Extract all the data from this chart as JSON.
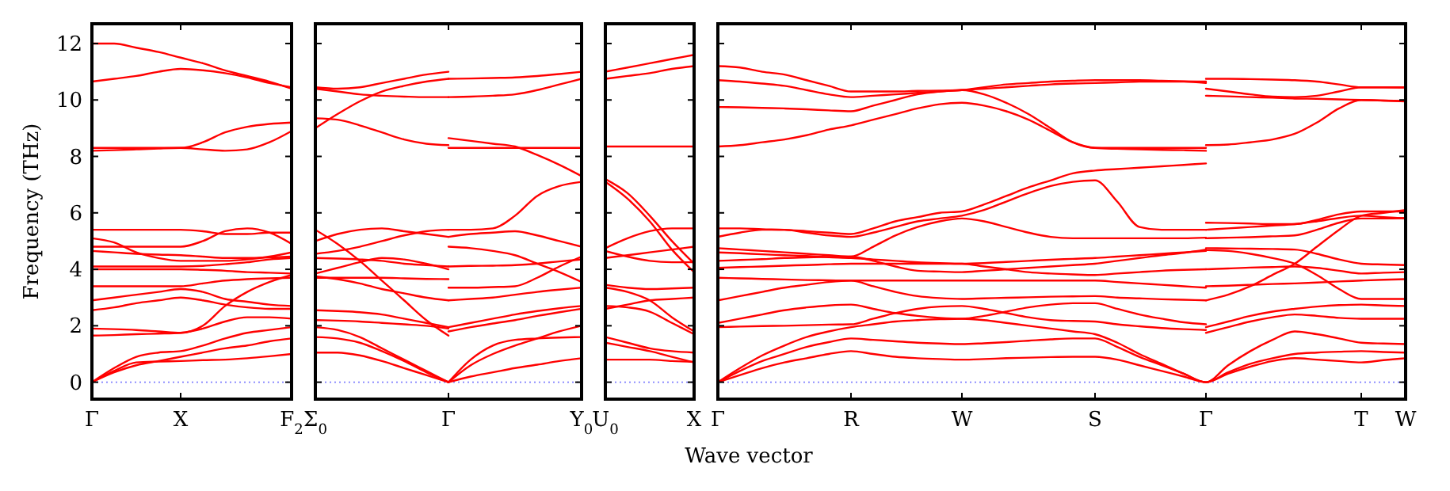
{
  "chart_data": [
    {
      "type": "line",
      "ylabel": "Frequency (THz)",
      "categories": [
        "Γ",
        null,
        null,
        null,
        "X",
        null,
        null,
        null,
        null,
        "F$_{2}$"
      ],
      "ylim": [
        -0.6,
        12.7
      ],
      "yticks": [
        0,
        2,
        4,
        6,
        8,
        10,
        12
      ],
      "ref_lines": [
        {
          "axis": "y",
          "value": 0,
          "color": "#8080ff",
          "line_style": "dotted"
        }
      ],
      "series": [
        {
          "color": "#ff0000",
          "values": [
            12.0,
            12.0,
            11.85,
            11.7,
            11.5,
            11.3,
            11.05,
            10.85,
            10.65,
            10.4
          ]
        },
        {
          "color": "#ff0000",
          "values": [
            10.65,
            10.75,
            10.85,
            11.0,
            11.1,
            11.05,
            10.95,
            10.8,
            10.6,
            10.45
          ]
        },
        {
          "color": "#ff0000",
          "values": [
            8.3,
            8.3,
            8.3,
            8.3,
            8.3,
            8.5,
            8.85,
            9.05,
            9.15,
            9.2
          ]
        },
        {
          "color": "#ff0000",
          "values": [
            8.2,
            8.22,
            8.25,
            8.28,
            8.3,
            8.25,
            8.2,
            8.25,
            8.5,
            8.9
          ]
        },
        {
          "color": "#ff0000",
          "values": [
            5.4,
            5.4,
            5.4,
            5.4,
            5.4,
            5.35,
            5.25,
            5.25,
            5.3,
            5.3
          ]
        },
        {
          "color": "#ff0000",
          "values": [
            4.8,
            4.8,
            4.8,
            4.8,
            4.8,
            5.0,
            5.35,
            5.45,
            5.3,
            4.9
          ]
        },
        {
          "color": "#ff0000",
          "values": [
            5.1,
            4.95,
            4.6,
            4.4,
            4.3,
            4.3,
            4.3,
            4.35,
            4.45,
            4.6
          ]
        },
        {
          "color": "#ff0000",
          "values": [
            4.65,
            4.6,
            4.55,
            4.52,
            4.5,
            4.45,
            4.4,
            4.4,
            4.42,
            4.45
          ]
        },
        {
          "color": "#ff0000",
          "values": [
            4.1,
            4.1,
            4.1,
            4.1,
            4.1,
            4.12,
            4.18,
            4.25,
            4.35,
            4.4
          ]
        },
        {
          "color": "#ff0000",
          "values": [
            4.0,
            4.0,
            4.0,
            4.0,
            4.0,
            3.98,
            3.95,
            3.9,
            3.88,
            3.85
          ]
        },
        {
          "color": "#ff0000",
          "values": [
            3.4,
            3.4,
            3.4,
            3.4,
            3.4,
            3.5,
            3.6,
            3.65,
            3.68,
            3.7
          ]
        },
        {
          "color": "#ff0000",
          "values": [
            2.9,
            3.0,
            3.1,
            3.2,
            3.3,
            3.2,
            2.95,
            2.85,
            2.75,
            2.7
          ]
        },
        {
          "color": "#ff0000",
          "values": [
            2.55,
            2.65,
            2.8,
            2.9,
            3.0,
            2.9,
            2.75,
            2.65,
            2.6,
            2.6
          ]
        },
        {
          "color": "#ff0000",
          "values": [
            1.9,
            1.88,
            1.85,
            1.8,
            1.75,
            2.0,
            2.7,
            3.2,
            3.55,
            3.8
          ]
        },
        {
          "color": "#ff0000",
          "values": [
            1.65,
            1.67,
            1.7,
            1.72,
            1.75,
            1.9,
            2.15,
            2.3,
            2.3,
            2.25
          ]
        },
        {
          "color": "#ff0000",
          "values": [
            0,
            0.5,
            0.9,
            1.05,
            1.1,
            1.3,
            1.55,
            1.75,
            1.85,
            1.95
          ]
        },
        {
          "color": "#ff0000",
          "values": [
            0,
            0.35,
            0.6,
            0.75,
            0.9,
            1.05,
            1.2,
            1.3,
            1.45,
            1.55
          ]
        },
        {
          "color": "#ff0000",
          "values": [
            0,
            0.4,
            0.7,
            0.73,
            0.75,
            0.78,
            0.8,
            0.85,
            0.92,
            1.0
          ]
        }
      ]
    },
    {
      "type": "line",
      "tick_labels": "x",
      "categories": [
        "Σ$_{0}$",
        null,
        null,
        null,
        null,
        null,
        "Γ",
        null,
        null,
        null,
        null,
        null,
        "Y$_{0}$"
      ],
      "ylim": [
        -0.6,
        12.7
      ],
      "yticks": [
        0,
        2,
        4,
        6,
        8,
        10,
        12
      ],
      "ref_lines": [
        {
          "axis": "y",
          "value": 0,
          "color": "#8080ff",
          "line_style": "dotted"
        }
      ],
      "series": [
        {
          "color": "#ff0000",
          "values": [
            10.45,
            10.4,
            10.45,
            10.6,
            10.75,
            10.9,
            11.0,
            null,
            null,
            null,
            null,
            null,
            null
          ]
        },
        {
          "color": "#ff0000",
          "values": [
            10.4,
            10.3,
            10.2,
            10.15,
            10.12,
            10.1,
            10.1,
            null,
            null,
            null,
            null,
            null,
            null
          ]
        },
        {
          "color": "#ff0000",
          "values": [
            9.0,
            9.5,
            9.95,
            10.3,
            10.5,
            10.65,
            10.75,
            null,
            null,
            null,
            null,
            null,
            null
          ]
        },
        {
          "color": "#ff0000",
          "values": [
            9.35,
            9.3,
            9.1,
            8.85,
            8.6,
            8.45,
            8.4,
            null,
            null,
            null,
            null,
            null,
            null
          ]
        },
        {
          "color": "#ff0000",
          "values": [
            5.0,
            5.25,
            5.4,
            5.45,
            5.35,
            5.25,
            5.15,
            null,
            null,
            null,
            null,
            null,
            null
          ]
        },
        {
          "color": "#ff0000",
          "values": [
            5.4,
            4.9,
            4.3,
            3.6,
            2.9,
            2.2,
            1.65,
            null,
            null,
            null,
            null,
            null,
            null
          ]
        },
        {
          "color": "#ff0000",
          "values": [
            4.55,
            4.65,
            4.8,
            5.0,
            5.2,
            5.35,
            5.4,
            null,
            null,
            null,
            null,
            null,
            null
          ]
        },
        {
          "color": "#ff0000",
          "values": [
            4.4,
            4.38,
            4.35,
            4.3,
            4.2,
            4.15,
            4.1,
            null,
            null,
            null,
            null,
            null,
            null
          ]
        },
        {
          "color": "#ff0000",
          "values": [
            3.85,
            4.05,
            4.25,
            4.4,
            4.35,
            4.2,
            4.0,
            null,
            null,
            null,
            null,
            null,
            null
          ]
        },
        {
          "color": "#ff0000",
          "values": [
            3.75,
            3.65,
            3.5,
            3.3,
            3.15,
            3.0,
            2.9,
            null,
            null,
            null,
            null,
            null,
            null
          ]
        },
        {
          "color": "#ff0000",
          "values": [
            3.7,
            3.7,
            3.7,
            3.7,
            3.68,
            3.66,
            3.65,
            null,
            null,
            null,
            null,
            null,
            null
          ]
        },
        {
          "color": "#ff0000",
          "values": [
            2.55,
            2.52,
            2.48,
            2.4,
            2.25,
            2.1,
            1.95,
            null,
            null,
            null,
            null,
            null,
            null
          ]
        },
        {
          "color": "#ff0000",
          "values": [
            2.2,
            2.18,
            2.15,
            2.1,
            2.05,
            2.0,
            1.9,
            null,
            null,
            null,
            null,
            null,
            null
          ]
        },
        {
          "color": "#ff0000",
          "values": [
            1.95,
            1.85,
            1.6,
            1.2,
            0.8,
            0.4,
            0,
            null,
            null,
            null,
            null,
            null,
            null
          ]
        },
        {
          "color": "#ff0000",
          "values": [
            1.6,
            1.55,
            1.4,
            1.1,
            0.75,
            0.35,
            0,
            null,
            null,
            null,
            null,
            null,
            null
          ]
        },
        {
          "color": "#ff0000",
          "values": [
            1.05,
            1.05,
            0.95,
            0.75,
            0.5,
            0.25,
            0,
            null,
            null,
            null,
            null,
            null,
            null
          ]
        },
        {
          "color": "#ff0000",
          "values": [
            null,
            null,
            null,
            null,
            null,
            null,
            10.75,
            10.76,
            10.78,
            10.8,
            10.85,
            10.92,
            11.0
          ]
        },
        {
          "color": "#ff0000",
          "values": [
            null,
            null,
            null,
            null,
            null,
            null,
            10.1,
            10.12,
            10.15,
            10.2,
            10.35,
            10.55,
            10.75
          ]
        },
        {
          "color": "#ff0000",
          "values": [
            null,
            null,
            null,
            null,
            null,
            null,
            8.65,
            8.55,
            8.45,
            8.35,
            8.05,
            7.7,
            7.3
          ]
        },
        {
          "color": "#ff0000",
          "values": [
            null,
            null,
            null,
            null,
            null,
            null,
            8.3,
            8.3,
            8.3,
            8.3,
            8.3,
            8.3,
            8.3
          ]
        },
        {
          "color": "#ff0000",
          "values": [
            null,
            null,
            null,
            null,
            null,
            null,
            5.4,
            5.4,
            5.45,
            5.9,
            6.6,
            6.95,
            7.1
          ]
        },
        {
          "color": "#ff0000",
          "values": [
            null,
            null,
            null,
            null,
            null,
            null,
            5.15,
            5.25,
            5.3,
            5.35,
            5.2,
            5.0,
            4.8
          ]
        },
        {
          "color": "#ff0000",
          "values": [
            null,
            null,
            null,
            null,
            null,
            null,
            4.8,
            4.75,
            4.65,
            4.5,
            4.2,
            3.9,
            3.55
          ]
        },
        {
          "color": "#ff0000",
          "values": [
            null,
            null,
            null,
            null,
            null,
            null,
            4.1,
            4.12,
            4.13,
            4.15,
            4.2,
            4.28,
            4.35
          ]
        },
        {
          "color": "#ff0000",
          "values": [
            null,
            null,
            null,
            null,
            null,
            null,
            3.35,
            3.35,
            3.37,
            3.4,
            3.7,
            4.1,
            4.45
          ]
        },
        {
          "color": "#ff0000",
          "values": [
            null,
            null,
            null,
            null,
            null,
            null,
            2.9,
            2.95,
            3.0,
            3.1,
            3.2,
            3.28,
            3.35
          ]
        },
        {
          "color": "#ff0000",
          "values": [
            null,
            null,
            null,
            null,
            null,
            null,
            1.95,
            2.1,
            2.25,
            2.4,
            2.52,
            2.62,
            2.7
          ]
        },
        {
          "color": "#ff0000",
          "values": [
            null,
            null,
            null,
            null,
            null,
            null,
            1.8,
            1.95,
            2.08,
            2.2,
            2.35,
            2.48,
            2.6
          ]
        },
        {
          "color": "#ff0000",
          "values": [
            null,
            null,
            null,
            null,
            null,
            null,
            0,
            0.8,
            1.3,
            1.5,
            1.55,
            1.58,
            1.6
          ]
        },
        {
          "color": "#ff0000",
          "values": [
            null,
            null,
            null,
            null,
            null,
            null,
            0,
            0.6,
            1.0,
            1.3,
            1.55,
            1.8,
            2.0
          ]
        },
        {
          "color": "#ff0000",
          "values": [
            null,
            null,
            null,
            null,
            null,
            null,
            0,
            0.2,
            0.35,
            0.5,
            0.62,
            0.75,
            0.85
          ]
        }
      ]
    },
    {
      "type": "line",
      "tick_labels": "x",
      "categories": [
        "U$_{0}$",
        null,
        null,
        null,
        "X"
      ],
      "ylim": [
        -0.6,
        12.7
      ],
      "yticks": [
        0,
        2,
        4,
        6,
        8,
        10,
        12
      ],
      "ref_lines": [
        {
          "axis": "y",
          "value": 0,
          "color": "#8080ff",
          "line_style": "dotted"
        }
      ],
      "series": [
        {
          "color": "#ff0000",
          "values": [
            11.0,
            11.15,
            11.3,
            11.45,
            11.6
          ]
        },
        {
          "color": "#ff0000",
          "values": [
            10.75,
            10.85,
            10.95,
            11.1,
            11.2
          ]
        },
        {
          "color": "#ff0000",
          "values": [
            8.35,
            8.35,
            8.35,
            8.35,
            8.35
          ]
        },
        {
          "color": "#ff0000",
          "values": [
            7.2,
            6.7,
            5.9,
            5.0,
            4.2
          ]
        },
        {
          "color": "#ff0000",
          "values": [
            7.1,
            6.5,
            5.7,
            4.7,
            3.9
          ]
        },
        {
          "color": "#ff0000",
          "values": [
            4.75,
            5.1,
            5.35,
            5.45,
            5.45
          ]
        },
        {
          "color": "#ff0000",
          "values": [
            4.4,
            4.5,
            4.6,
            4.7,
            4.8
          ]
        },
        {
          "color": "#ff0000",
          "values": [
            4.65,
            4.45,
            4.3,
            4.25,
            4.25
          ]
        },
        {
          "color": "#ff0000",
          "values": [
            3.45,
            3.35,
            3.3,
            3.32,
            3.35
          ]
        },
        {
          "color": "#ff0000",
          "values": [
            3.35,
            3.2,
            2.9,
            2.3,
            1.8
          ]
        },
        {
          "color": "#ff0000",
          "values": [
            2.7,
            2.65,
            2.5,
            2.1,
            1.7
          ]
        },
        {
          "color": "#ff0000",
          "values": [
            2.6,
            2.75,
            2.9,
            2.95,
            3.0
          ]
        },
        {
          "color": "#ff0000",
          "values": [
            1.6,
            1.4,
            1.2,
            1.1,
            1.05
          ]
        },
        {
          "color": "#ff0000",
          "values": [
            1.4,
            1.25,
            1.1,
            0.9,
            0.7
          ]
        },
        {
          "color": "#ff0000",
          "values": [
            0.8,
            0.8,
            0.8,
            0.75,
            0.72
          ]
        }
      ]
    },
    {
      "type": "line",
      "tick_labels": "x",
      "xlabel": "Wave vector",
      "categories": [
        "Γ",
        null,
        null,
        null,
        null,
        null,
        "R",
        null,
        null,
        null,
        null,
        "W",
        null,
        null,
        null,
        null,
        null,
        "S",
        null,
        null,
        null,
        null,
        "Γ",
        null,
        null,
        null,
        null,
        null,
        null,
        "T",
        null,
        "W"
      ],
      "ylim": [
        -0.6,
        12.7
      ],
      "yticks": [
        0,
        2,
        4,
        6,
        8,
        10,
        12
      ],
      "ref_lines": [
        {
          "axis": "y",
          "value": 0,
          "color": "#8080ff",
          "line_style": "dotted"
        }
      ],
      "series": [
        {
          "color": "#ff0000",
          "values": [
            11.2,
            11.15,
            11.0,
            10.9,
            10.7,
            10.5,
            10.3,
            10.3,
            10.3,
            10.32,
            10.33,
            10.35,
            10.45,
            10.55,
            10.6,
            10.65,
            10.68,
            10.7,
            10.7,
            10.7,
            10.68,
            10.66,
            10.65,
            null,
            null,
            null,
            null,
            null,
            null,
            null,
            null,
            null
          ]
        },
        {
          "color": "#ff0000",
          "values": [
            10.7,
            10.65,
            10.58,
            10.5,
            10.35,
            10.2,
            10.1,
            10.15,
            10.2,
            10.25,
            10.3,
            10.35,
            10.4,
            10.45,
            10.5,
            10.55,
            10.58,
            10.6,
            10.62,
            10.65,
            10.65,
            10.65,
            10.6,
            null,
            null,
            null,
            null,
            null,
            null,
            null,
            null,
            null
          ]
        },
        {
          "color": "#ff0000",
          "values": [
            9.75,
            9.74,
            9.72,
            9.7,
            9.67,
            9.63,
            9.6,
            9.8,
            10.0,
            10.2,
            10.3,
            10.35,
            10.2,
            9.9,
            9.5,
            9.0,
            8.5,
            8.3,
            8.3,
            8.3,
            8.3,
            8.3,
            8.3,
            null,
            null,
            null,
            null,
            null,
            null,
            null,
            null,
            null
          ]
        },
        {
          "color": "#ff0000",
          "values": [
            8.35,
            8.4,
            8.5,
            8.6,
            8.75,
            8.95,
            9.1,
            9.3,
            9.5,
            9.7,
            9.85,
            9.9,
            9.8,
            9.6,
            9.3,
            8.9,
            8.5,
            8.3,
            8.27,
            8.25,
            8.23,
            8.22,
            8.2,
            null,
            null,
            null,
            null,
            null,
            null,
            null,
            null,
            null
          ]
        },
        {
          "color": "#ff0000",
          "values": [
            5.45,
            5.45,
            5.42,
            5.4,
            5.35,
            5.3,
            5.25,
            5.45,
            5.7,
            5.85,
            6.0,
            6.05,
            6.3,
            6.6,
            6.9,
            7.15,
            7.4,
            7.5,
            7.55,
            7.6,
            7.65,
            7.7,
            7.75,
            null,
            null,
            null,
            null,
            null,
            null,
            null,
            null,
            null
          ]
        },
        {
          "color": "#ff0000",
          "values": [
            5.15,
            5.3,
            5.4,
            5.4,
            5.3,
            5.2,
            5.15,
            5.3,
            5.5,
            5.7,
            5.8,
            5.9,
            6.1,
            6.4,
            6.7,
            6.95,
            7.1,
            7.15,
            6.4,
            5.5,
            5.4,
            5.4,
            5.4,
            null,
            null,
            null,
            null,
            null,
            null,
            null,
            null,
            null
          ]
        },
        {
          "color": "#ff0000",
          "values": [
            4.75,
            4.7,
            4.65,
            4.6,
            4.55,
            4.5,
            4.45,
            4.8,
            5.2,
            5.5,
            5.7,
            5.8,
            5.7,
            5.5,
            5.3,
            5.15,
            5.1,
            5.1,
            5.1,
            5.1,
            5.1,
            5.1,
            5.12,
            null,
            null,
            null,
            null,
            null,
            null,
            null,
            null,
            null
          ]
        },
        {
          "color": "#ff0000",
          "values": [
            4.6,
            4.57,
            4.53,
            4.5,
            4.47,
            4.43,
            4.4,
            4.35,
            4.3,
            4.25,
            4.22,
            4.2,
            4.22,
            4.26,
            4.3,
            4.34,
            4.37,
            4.4,
            4.45,
            4.5,
            4.55,
            4.6,
            4.65,
            null,
            null,
            null,
            null,
            null,
            null,
            null,
            null,
            null
          ]
        },
        {
          "color": "#ff0000",
          "values": [
            4.3,
            4.33,
            4.36,
            4.4,
            4.42,
            4.44,
            4.45,
            4.3,
            4.1,
            3.95,
            3.92,
            3.9,
            3.95,
            4.0,
            4.05,
            4.1,
            4.15,
            4.2,
            4.3,
            4.4,
            4.5,
            4.58,
            4.7,
            null,
            null,
            null,
            null,
            null,
            null,
            null,
            null,
            null
          ]
        },
        {
          "color": "#ff0000",
          "values": [
            4.05,
            4.08,
            4.1,
            4.13,
            4.15,
            4.18,
            4.2,
            4.2,
            4.2,
            4.2,
            4.2,
            4.2,
            4.1,
            4.0,
            3.9,
            3.85,
            3.82,
            3.8,
            3.85,
            3.9,
            3.95,
            3.98,
            4.0,
            null,
            null,
            null,
            null,
            null,
            null,
            null,
            null,
            null
          ]
        },
        {
          "color": "#ff0000",
          "values": [
            3.7,
            3.68,
            3.66,
            3.64,
            3.62,
            3.61,
            3.6,
            3.6,
            3.6,
            3.6,
            3.6,
            3.6,
            3.6,
            3.6,
            3.6,
            3.6,
            3.6,
            3.6,
            3.55,
            3.5,
            3.45,
            3.4,
            3.35,
            null,
            null,
            null,
            null,
            null,
            null,
            null,
            null,
            null
          ]
        },
        {
          "color": "#ff0000",
          "values": [
            2.9,
            3.05,
            3.2,
            3.35,
            3.45,
            3.55,
            3.6,
            3.4,
            3.2,
            3.05,
            2.98,
            2.95,
            2.97,
            2.99,
            3.01,
            3.03,
            3.04,
            3.05,
            3.0,
            2.97,
            2.94,
            2.92,
            2.9,
            null,
            null,
            null,
            null,
            null,
            null,
            null,
            null,
            null
          ]
        },
        {
          "color": "#ff0000",
          "values": [
            2.1,
            2.25,
            2.4,
            2.55,
            2.65,
            2.72,
            2.75,
            2.6,
            2.45,
            2.35,
            2.28,
            2.25,
            2.35,
            2.5,
            2.65,
            2.75,
            2.8,
            2.8,
            2.6,
            2.4,
            2.25,
            2.12,
            2.05,
            null,
            null,
            null,
            null,
            null,
            null,
            null,
            null,
            null
          ]
        },
        {
          "color": "#ff0000",
          "values": [
            1.95,
            1.97,
            1.99,
            2.0,
            2.02,
            2.04,
            2.05,
            2.25,
            2.45,
            2.6,
            2.68,
            2.7,
            2.6,
            2.45,
            2.3,
            2.2,
            2.17,
            2.15,
            2.05,
            1.98,
            1.92,
            1.88,
            1.85,
            null,
            null,
            null,
            null,
            null,
            null,
            null,
            null,
            null
          ]
        },
        {
          "color": "#ff0000",
          "values": [
            0,
            0.5,
            0.95,
            1.3,
            1.6,
            1.8,
            1.95,
            2.05,
            2.15,
            2.2,
            2.23,
            2.25,
            2.2,
            2.1,
            2.0,
            1.9,
            1.8,
            1.7,
            1.4,
            1.0,
            0.65,
            0.3,
            0,
            0.6,
            1.1,
            1.5,
            1.8,
            1.7,
            1.55,
            1.4,
            1.37,
            1.35
          ]
        },
        {
          "color": "#ff0000",
          "values": [
            0,
            0.4,
            0.75,
            1.0,
            1.25,
            1.42,
            1.55,
            1.5,
            1.45,
            1.4,
            1.37,
            1.35,
            1.38,
            1.42,
            1.47,
            1.52,
            1.55,
            1.55,
            1.25,
            0.9,
            0.6,
            0.3,
            0,
            0.35,
            0.65,
            0.85,
            1.0,
            1.05,
            1.08,
            1.1,
            1.07,
            1.05
          ]
        },
        {
          "color": "#ff0000",
          "values": [
            0,
            0.25,
            0.5,
            0.7,
            0.85,
            1.0,
            1.1,
            1.0,
            0.9,
            0.85,
            0.82,
            0.8,
            0.82,
            0.85,
            0.87,
            0.89,
            0.9,
            0.9,
            0.8,
            0.6,
            0.4,
            0.2,
            0,
            0.3,
            0.55,
            0.75,
            0.85,
            0.8,
            0.75,
            0.7,
            0.78,
            0.85
          ]
        },
        {
          "color": "#ff0000",
          "values": [
            null,
            null,
            null,
            null,
            null,
            null,
            null,
            null,
            null,
            null,
            null,
            null,
            null,
            null,
            null,
            null,
            null,
            null,
            null,
            null,
            null,
            null,
            10.75,
            10.75,
            10.74,
            10.72,
            10.7,
            10.65,
            10.55,
            10.45,
            10.45,
            10.45
          ]
        },
        {
          "color": "#ff0000",
          "values": [
            null,
            null,
            null,
            null,
            null,
            null,
            null,
            null,
            null,
            null,
            null,
            null,
            null,
            null,
            null,
            null,
            null,
            null,
            null,
            null,
            null,
            null,
            10.4,
            10.3,
            10.2,
            10.12,
            10.1,
            10.15,
            10.3,
            10.45,
            10.45,
            10.44
          ]
        },
        {
          "color": "#ff0000",
          "values": [
            null,
            null,
            null,
            null,
            null,
            null,
            null,
            null,
            null,
            null,
            null,
            null,
            null,
            null,
            null,
            null,
            null,
            null,
            null,
            null,
            null,
            null,
            10.15,
            10.13,
            10.1,
            10.08,
            10.05,
            10.04,
            10.02,
            10.0,
            9.98,
            9.95
          ]
        },
        {
          "color": "#ff0000",
          "values": [
            null,
            null,
            null,
            null,
            null,
            null,
            null,
            null,
            null,
            null,
            null,
            null,
            null,
            null,
            null,
            null,
            null,
            null,
            null,
            null,
            null,
            null,
            8.4,
            8.42,
            8.5,
            8.6,
            8.8,
            9.2,
            9.7,
            10.0,
            9.98,
            9.96
          ]
        },
        {
          "color": "#ff0000",
          "values": [
            null,
            null,
            null,
            null,
            null,
            null,
            null,
            null,
            null,
            null,
            null,
            null,
            null,
            null,
            null,
            null,
            null,
            null,
            null,
            null,
            null,
            null,
            5.65,
            5.64,
            5.62,
            5.6,
            5.6,
            5.75,
            5.95,
            6.05,
            6.05,
            6.05
          ]
        },
        {
          "color": "#ff0000",
          "values": [
            null,
            null,
            null,
            null,
            null,
            null,
            null,
            null,
            null,
            null,
            null,
            null,
            null,
            null,
            null,
            null,
            null,
            null,
            null,
            null,
            null,
            null,
            5.4,
            5.45,
            5.5,
            5.55,
            5.6,
            5.7,
            5.82,
            5.9,
            5.85,
            5.8
          ]
        },
        {
          "color": "#ff0000",
          "values": [
            null,
            null,
            null,
            null,
            null,
            null,
            null,
            null,
            null,
            null,
            null,
            null,
            null,
            null,
            null,
            null,
            null,
            null,
            null,
            null,
            null,
            null,
            5.1,
            5.12,
            5.14,
            5.17,
            5.2,
            5.4,
            5.65,
            5.8,
            5.8,
            5.82
          ]
        },
        {
          "color": "#ff0000",
          "values": [
            null,
            null,
            null,
            null,
            null,
            null,
            null,
            null,
            null,
            null,
            null,
            null,
            null,
            null,
            null,
            null,
            null,
            null,
            null,
            null,
            null,
            null,
            4.75,
            4.74,
            4.73,
            4.72,
            4.7,
            4.55,
            4.35,
            4.2,
            4.17,
            4.15
          ]
        },
        {
          "color": "#ff0000",
          "values": [
            null,
            null,
            null,
            null,
            null,
            null,
            null,
            null,
            null,
            null,
            null,
            null,
            null,
            null,
            null,
            null,
            null,
            null,
            null,
            null,
            null,
            null,
            4.68,
            4.65,
            4.55,
            4.4,
            4.2,
            3.8,
            3.3,
            2.95,
            2.95,
            2.95
          ]
        },
        {
          "color": "#ff0000",
          "values": [
            null,
            null,
            null,
            null,
            null,
            null,
            null,
            null,
            null,
            null,
            null,
            null,
            null,
            null,
            null,
            null,
            null,
            null,
            null,
            null,
            null,
            null,
            4.0,
            4.03,
            4.06,
            4.08,
            4.1,
            4.05,
            3.95,
            3.85,
            3.88,
            3.9
          ]
        },
        {
          "color": "#ff0000",
          "values": [
            null,
            null,
            null,
            null,
            null,
            null,
            null,
            null,
            null,
            null,
            null,
            null,
            null,
            null,
            null,
            null,
            null,
            null,
            null,
            null,
            null,
            null,
            3.4,
            3.42,
            3.45,
            3.48,
            3.5,
            3.53,
            3.57,
            3.6,
            3.63,
            3.65
          ]
        },
        {
          "color": "#ff0000",
          "values": [
            null,
            null,
            null,
            null,
            null,
            null,
            null,
            null,
            null,
            null,
            null,
            null,
            null,
            null,
            null,
            null,
            null,
            null,
            null,
            null,
            null,
            null,
            2.9,
            3.1,
            3.4,
            3.8,
            4.2,
            4.8,
            5.4,
            5.9,
            6.0,
            6.1
          ]
        },
        {
          "color": "#ff0000",
          "values": [
            null,
            null,
            null,
            null,
            null,
            null,
            null,
            null,
            null,
            null,
            null,
            null,
            null,
            null,
            null,
            null,
            null,
            null,
            null,
            null,
            null,
            null,
            1.95,
            2.15,
            2.35,
            2.5,
            2.6,
            2.68,
            2.73,
            2.75,
            2.72,
            2.7
          ]
        },
        {
          "color": "#ff0000",
          "values": [
            null,
            null,
            null,
            null,
            null,
            null,
            null,
            null,
            null,
            null,
            null,
            null,
            null,
            null,
            null,
            null,
            null,
            null,
            null,
            null,
            null,
            null,
            1.75,
            1.95,
            2.15,
            2.3,
            2.4,
            2.35,
            2.28,
            2.25,
            2.25,
            2.25
          ]
        }
      ]
    }
  ]
}
